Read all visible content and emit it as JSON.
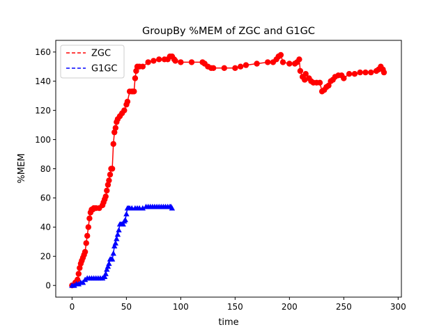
{
  "chart_data": {
    "type": "line",
    "title": "GroupBy %MEM of ZGC and G1GC",
    "xlabel": "time",
    "ylabel": "%MEM",
    "xlim": [
      -15,
      303
    ],
    "ylim": [
      -8,
      168
    ],
    "xticks": [
      0,
      50,
      100,
      150,
      200,
      250,
      300
    ],
    "yticks": [
      0,
      20,
      40,
      60,
      80,
      100,
      120,
      140,
      160
    ],
    "grid": false,
    "legend_position": "top-left",
    "series": [
      {
        "name": "ZGC",
        "color": "#ff0000",
        "marker": "circle",
        "x": [
          0,
          3,
          5,
          6,
          7,
          8,
          9,
          10,
          11,
          12,
          13,
          14,
          15,
          16,
          17,
          18,
          19,
          20,
          22,
          25,
          28,
          29,
          30,
          31,
          32,
          33,
          34,
          35,
          36,
          37,
          38,
          39,
          40,
          41,
          42,
          44,
          46,
          48,
          50,
          51,
          53,
          55,
          56,
          57,
          58,
          59,
          60,
          62,
          65,
          70,
          75,
          80,
          85,
          88,
          90,
          92,
          94,
          95,
          100,
          110,
          120,
          122,
          125,
          128,
          130,
          140,
          150,
          155,
          160,
          170,
          180,
          185,
          188,
          190,
          192,
          194,
          200,
          205,
          207,
          209,
          210,
          212,
          214,
          215,
          218,
          220,
          222,
          225,
          228,
          230,
          232,
          234,
          236,
          238,
          240,
          242,
          245,
          248,
          250,
          255,
          260,
          265,
          270,
          275,
          280,
          282,
          284,
          286,
          287
        ],
        "y": [
          0,
          2,
          4,
          8,
          12,
          15,
          17,
          19,
          21,
          23,
          29,
          34,
          40,
          46,
          50,
          52,
          52,
          53,
          53,
          53,
          55,
          57,
          59,
          61,
          65,
          69,
          72,
          76,
          80,
          80,
          97,
          105,
          108,
          112,
          114,
          116,
          118,
          120,
          124,
          126,
          133,
          133,
          133,
          133,
          142,
          147,
          150,
          150,
          150,
          153,
          154,
          155,
          155,
          155,
          157,
          157,
          155,
          154,
          153,
          153,
          153,
          152,
          150,
          149,
          149,
          149,
          149,
          150,
          151,
          152,
          153,
          153,
          155,
          157,
          158,
          153,
          152,
          152,
          153,
          155,
          147,
          143,
          141,
          145,
          142,
          140,
          139,
          139,
          139,
          133,
          134,
          136,
          137,
          140,
          141,
          143,
          144,
          144,
          142,
          145,
          145,
          146,
          146,
          146,
          147,
          148,
          150,
          148,
          146
        ]
      },
      {
        "name": "G1GC",
        "color": "#0000ff",
        "marker": "triangle",
        "x": [
          0,
          2,
          4,
          6,
          8,
          10,
          12,
          14,
          16,
          18,
          20,
          22,
          24,
          26,
          28,
          30,
          31,
          32,
          33,
          34,
          35,
          36,
          37,
          38,
          39,
          40,
          41,
          42,
          43,
          44,
          45,
          46,
          47,
          48,
          49,
          50,
          51,
          52,
          53,
          55,
          58,
          60,
          62,
          65,
          68,
          70,
          72,
          74,
          76,
          78,
          80,
          82,
          84,
          86,
          88,
          90,
          91,
          92
        ],
        "y": [
          0,
          0,
          1,
          1,
          2,
          2,
          4,
          5,
          5,
          5,
          5,
          5,
          5,
          5,
          5,
          6,
          8,
          11,
          13,
          15,
          18,
          18,
          18,
          22,
          27,
          29,
          32,
          35,
          38,
          42,
          42,
          42,
          42,
          44,
          45,
          49,
          53,
          53,
          53,
          53,
          53,
          53,
          53,
          53,
          54,
          54,
          54,
          54,
          54,
          54,
          54,
          54,
          54,
          54,
          54,
          54,
          54,
          53
        ]
      }
    ]
  }
}
